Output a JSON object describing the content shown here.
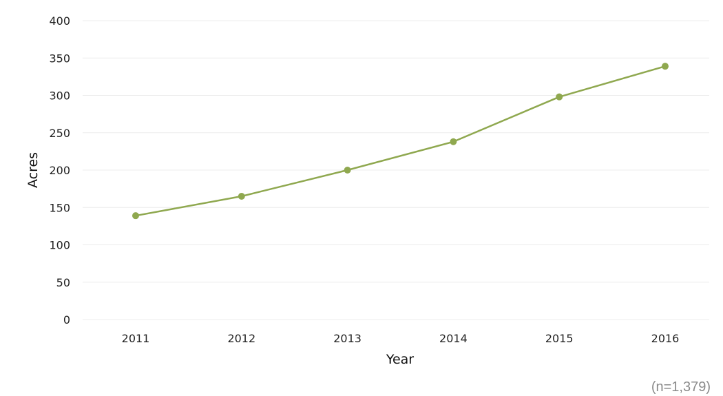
{
  "chart_data": {
    "type": "line",
    "title": "",
    "xlabel": "Year",
    "ylabel": "Acres",
    "categories": [
      "2011",
      "2012",
      "2013",
      "2014",
      "2015",
      "2016"
    ],
    "series": [
      {
        "values": [
          139,
          165,
          200,
          238,
          298,
          339
        ]
      }
    ],
    "ylim": [
      0,
      400
    ],
    "yticks": [
      0,
      50,
      100,
      150,
      200,
      250,
      300,
      350,
      400
    ],
    "grid": true,
    "line_color": "#8fa84f",
    "grid_color": "#ececec",
    "footnote": "(n=1,379)"
  }
}
